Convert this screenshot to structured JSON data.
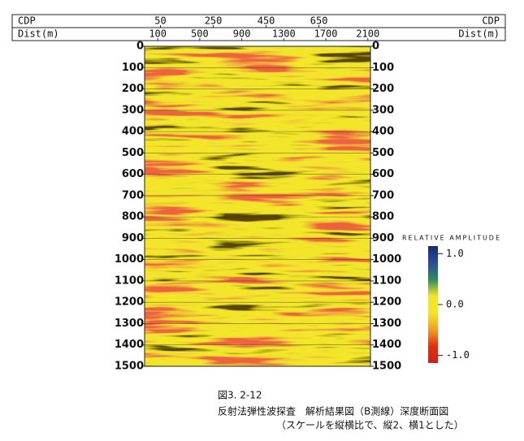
{
  "chart_data": {
    "type": "seismic-section",
    "x2_label": "CDP",
    "x2lim": [
      -10,
      845
    ],
    "x2ticks": [
      50,
      250,
      450,
      650
    ],
    "x_label": "Dist(m)",
    "xlim": [
      -25,
      2125
    ],
    "xticks": [
      100,
      500,
      900,
      1300,
      1700,
      2100
    ],
    "ylim": [
      0,
      1500
    ],
    "y_inverted": true,
    "yticks": [
      0,
      100,
      200,
      300,
      400,
      500,
      600,
      700,
      800,
      900,
      1000,
      1100,
      1200,
      1300,
      1400,
      1500
    ],
    "grid": true,
    "colorbar": {
      "title": "RELATIVE AMPLITUDE",
      "lim": [
        -1.15,
        1.15
      ],
      "ticks": [
        {
          "value": 1,
          "label": "1.0"
        },
        {
          "value": 0,
          "label": "0.0"
        },
        {
          "value": -1,
          "label": "-1.0"
        }
      ],
      "colors": [
        "#1a2a6a",
        "#2a4aa0",
        "#2f8a5a",
        "#f2e52a",
        "#f2e52a",
        "#f0a020",
        "#e03010",
        "#d02020"
      ]
    },
    "caption": [
      "図3. 2-12",
      "反射法弾性波探査　解析結果図（B測線）深度断面図",
      "（スケールを縦横比で、縦2、横1とした）"
    ]
  }
}
